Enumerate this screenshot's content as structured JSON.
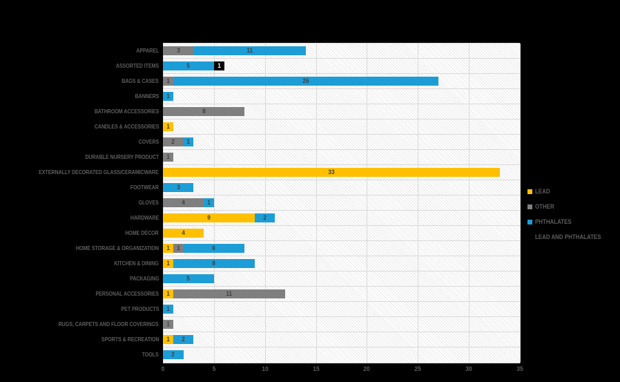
{
  "page": {
    "background_color": "#000000",
    "title": ""
  },
  "chart_data": {
    "type": "bar",
    "orientation": "horizontal",
    "stacked": true,
    "title": "",
    "xlabel": "",
    "ylabel": "",
    "xlim": [
      0,
      35
    ],
    "xticks": [
      0,
      5,
      10,
      15,
      20,
      25,
      30,
      35
    ],
    "grid": true,
    "legend_position": "right",
    "plot_background": "hatched-white",
    "gridline_color": "#d9d9d9",
    "label_color": "#5c5c5c",
    "value_label_color": "#404040",
    "categories": [
      "APPAREL",
      "ASSORTED ITEMS",
      "BAGS & CASES",
      "BANNERS",
      "BATHROOM ACCESSORIES",
      "CANDLES & ACCESSORIES",
      "COVERS",
      "DURABLE NURSERY PRODUCT",
      "EXTERNALLY DECORATED GLASS/CERAMICWARE",
      "FOOTWEAR",
      "GLOVES",
      "HARDWARE",
      "HOME DÉCOR",
      "HOME STORAGE & ORGANIZATION",
      "KITCHEN & DINING",
      "PACKAGING",
      "PERSONAL ACCESSORIES",
      "PET PRODUCTS",
      "RUGS, CARPETS AND FLOOR COVERINGS",
      "SPORTS & RECREATION",
      "TOOLS"
    ],
    "series": [
      {
        "name": "LEAD",
        "color": "#FFC000",
        "values": [
          0,
          0,
          0,
          0,
          0,
          1,
          0,
          0,
          33,
          0,
          0,
          9,
          4,
          1,
          1,
          0,
          1,
          0,
          0,
          1,
          0
        ]
      },
      {
        "name": "OTHER",
        "color": "#7F7F7F",
        "values": [
          3,
          0,
          1,
          0,
          8,
          0,
          2,
          1,
          0,
          0,
          4,
          0,
          0,
          1,
          0,
          0,
          11,
          0,
          1,
          0,
          0
        ]
      },
      {
        "name": "PHTHALATES",
        "color": "#1D9DD6",
        "values": [
          11,
          5,
          26,
          1,
          0,
          0,
          1,
          0,
          0,
          3,
          1,
          2,
          0,
          6,
          8,
          5,
          0,
          1,
          0,
          2,
          2
        ]
      },
      {
        "name": "LEAD AND PHTHALATES",
        "color": "#000000",
        "values": [
          0,
          1,
          0,
          0,
          0,
          0,
          0,
          0,
          0,
          0,
          0,
          0,
          0,
          0,
          0,
          0,
          0,
          0,
          0,
          0,
          0
        ]
      }
    ],
    "legend": [
      {
        "label": "LEAD",
        "color": "#FFC000"
      },
      {
        "label": "OTHER",
        "color": "#7F7F7F"
      },
      {
        "label": "PHTHALATES",
        "color": "#1D9DD6"
      },
      {
        "label": "LEAD AND PHTHALATES",
        "color": "#000000"
      }
    ]
  }
}
